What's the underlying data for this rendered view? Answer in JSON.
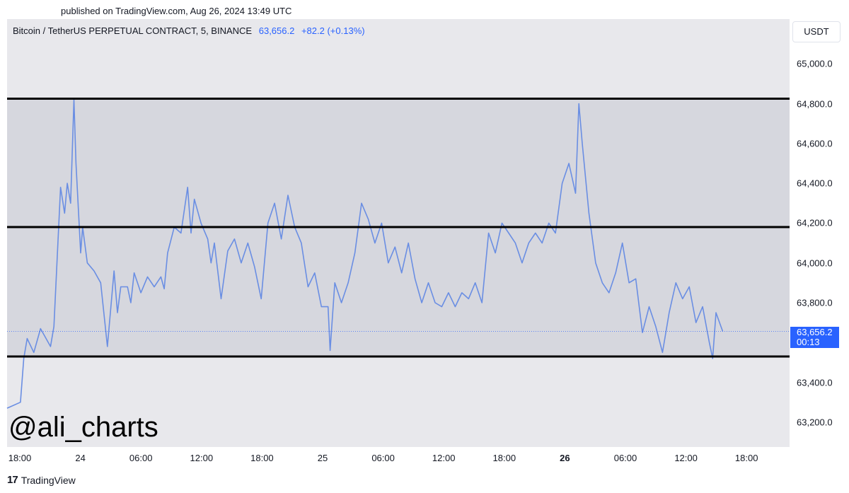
{
  "header": {
    "published": "published on TradingView.com, Aug 26, 2024 13:49 UTC"
  },
  "symbol": {
    "name": "Bitcoin / TetherUS PERPETUAL CONTRACT, 5, BINANCE",
    "price": "63,656.2",
    "change": "+82.2 (+0.13%)"
  },
  "axis": {
    "currency": "USDT",
    "price_label": "63,656.2",
    "countdown": "00:13"
  },
  "watermark": "@ali_charts",
  "footer": {
    "logo": "17",
    "brand": "TradingView"
  },
  "colors": {
    "line": "#6a8ee3",
    "bg": "#e8e8ec",
    "band": "#d6d7de",
    "accent": "#2962ff"
  },
  "chart_data": {
    "type": "line",
    "series": [
      {
        "values": [
          [
            0,
            63270
          ],
          [
            2,
            63300
          ],
          [
            2.5,
            63520
          ],
          [
            3,
            63620
          ],
          [
            4,
            63550
          ],
          [
            5,
            63670
          ],
          [
            6.5,
            63580
          ],
          [
            7,
            63680
          ],
          [
            8,
            64380
          ],
          [
            8.6,
            64250
          ],
          [
            9,
            64400
          ],
          [
            9.5,
            64300
          ],
          [
            10,
            64820
          ],
          [
            10.3,
            64500
          ],
          [
            11,
            64050
          ],
          [
            11.3,
            64180
          ],
          [
            12,
            64000
          ],
          [
            13,
            63960
          ],
          [
            14,
            63900
          ],
          [
            15,
            63580
          ],
          [
            16,
            63960
          ],
          [
            16.5,
            63750
          ],
          [
            17,
            63880
          ],
          [
            18,
            63880
          ],
          [
            18.5,
            63800
          ],
          [
            19,
            63950
          ],
          [
            20,
            63850
          ],
          [
            21,
            63930
          ],
          [
            22,
            63880
          ],
          [
            23,
            63930
          ],
          [
            23.5,
            63870
          ],
          [
            24,
            64050
          ],
          [
            25,
            64180
          ],
          [
            26,
            64150
          ],
          [
            27,
            64380
          ],
          [
            27.5,
            64150
          ],
          [
            28,
            64320
          ],
          [
            29,
            64200
          ],
          [
            30,
            64120
          ],
          [
            30.5,
            64000
          ],
          [
            31,
            64100
          ],
          [
            32,
            63820
          ],
          [
            33,
            64060
          ],
          [
            34,
            64120
          ],
          [
            35,
            64000
          ],
          [
            36,
            64100
          ],
          [
            37,
            63980
          ],
          [
            38,
            63820
          ],
          [
            39,
            64200
          ],
          [
            40,
            64300
          ],
          [
            41,
            64120
          ],
          [
            42,
            64340
          ],
          [
            43,
            64180
          ],
          [
            44,
            64100
          ],
          [
            45,
            63880
          ],
          [
            46,
            63950
          ],
          [
            47,
            63780
          ],
          [
            48,
            63780
          ],
          [
            48.3,
            63560
          ],
          [
            49,
            63900
          ],
          [
            50,
            63800
          ],
          [
            51,
            63900
          ],
          [
            52,
            64050
          ],
          [
            53,
            64300
          ],
          [
            54,
            64220
          ],
          [
            55,
            64100
          ],
          [
            56,
            64200
          ],
          [
            57,
            64000
          ],
          [
            58,
            64080
          ],
          [
            59,
            63950
          ],
          [
            60,
            64100
          ],
          [
            61,
            63920
          ],
          [
            62,
            63800
          ],
          [
            63,
            63900
          ],
          [
            64,
            63800
          ],
          [
            65,
            63780
          ],
          [
            66,
            63850
          ],
          [
            67,
            63780
          ],
          [
            68,
            63850
          ],
          [
            69,
            63820
          ],
          [
            70,
            63900
          ],
          [
            71,
            63800
          ],
          [
            72,
            64150
          ],
          [
            73,
            64050
          ],
          [
            74,
            64200
          ],
          [
            75,
            64150
          ],
          [
            76,
            64100
          ],
          [
            77,
            64000
          ],
          [
            78,
            64100
          ],
          [
            79,
            64150
          ],
          [
            80,
            64100
          ],
          [
            81,
            64200
          ],
          [
            82,
            64150
          ],
          [
            83,
            64400
          ],
          [
            84,
            64500
          ],
          [
            85,
            64350
          ],
          [
            85.5,
            64800
          ],
          [
            86,
            64600
          ],
          [
            87,
            64250
          ],
          [
            88,
            64000
          ],
          [
            89,
            63900
          ],
          [
            90,
            63850
          ],
          [
            91,
            63950
          ],
          [
            92,
            64100
          ],
          [
            93,
            63900
          ],
          [
            94,
            63920
          ],
          [
            95,
            63650
          ],
          [
            96,
            63780
          ],
          [
            97,
            63680
          ],
          [
            98,
            63550
          ],
          [
            99,
            63750
          ],
          [
            100,
            63900
          ],
          [
            101,
            63820
          ],
          [
            102,
            63880
          ],
          [
            103,
            63700
          ],
          [
            104,
            63780
          ],
          [
            105,
            63600
          ],
          [
            105.5,
            63520
          ],
          [
            106,
            63750
          ],
          [
            107,
            63656
          ]
        ]
      }
    ],
    "levels": [
      64825,
      64180,
      63530
    ],
    "ylim": [
      63075,
      65225
    ],
    "xlim": [
      0,
      117
    ],
    "x_tick_labels": [
      "18:00",
      "24",
      "06:00",
      "12:00",
      "18:00",
      "25",
      "06:00",
      "12:00",
      "18:00",
      "26",
      "06:00",
      "12:00",
      "18:00"
    ],
    "y_tick_labels": [
      "65,000.0",
      "64,800.0",
      "64,600.0",
      "64,400.0",
      "64,200.0",
      "64,000.0",
      "63,800.0",
      "63,400.0",
      "63,200.0"
    ],
    "y_tick_values": [
      65000,
      64800,
      64600,
      64400,
      64200,
      64000,
      63800,
      63400,
      63200
    ],
    "grid": false
  }
}
